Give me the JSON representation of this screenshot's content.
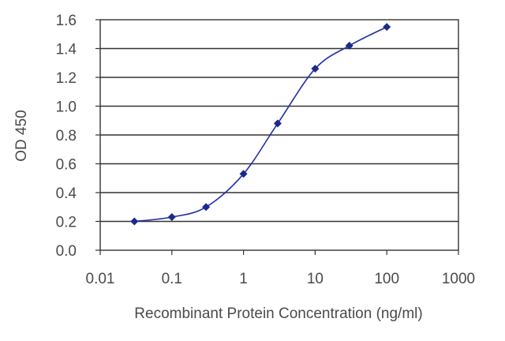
{
  "chart_data": {
    "type": "line",
    "xscale": "log",
    "xlabel": "Recombinant Protein Concentration (ng/ml)",
    "ylabel": "OD 450",
    "xlim": [
      0.01,
      1000
    ],
    "ylim": [
      0,
      1.6
    ],
    "x_ticks": [
      0.01,
      0.1,
      1,
      10,
      100,
      1000
    ],
    "x_tick_labels": [
      "0.01",
      "0.1",
      "1",
      "10",
      "100",
      "1000"
    ],
    "y_ticks": [
      0,
      0.2,
      0.4,
      0.6,
      0.8,
      1.0,
      1.2,
      1.4,
      1.6
    ],
    "y_tick_labels": [
      "0.0",
      "0.2",
      "0.4",
      "0.6",
      "0.8",
      "1.0",
      "1.2",
      "1.4",
      "1.6"
    ],
    "grid": "horizontal",
    "series": [
      {
        "x": [
          0.03,
          0.1,
          0.3,
          1,
          3,
          10,
          30,
          100
        ],
        "y": [
          0.2,
          0.23,
          0.3,
          0.53,
          0.88,
          1.26,
          1.42,
          1.55
        ]
      }
    ],
    "colors": {
      "series": "#1f2fa3",
      "marker": "#1a2a8e",
      "grid": "#333333",
      "frame": "#333333"
    }
  }
}
